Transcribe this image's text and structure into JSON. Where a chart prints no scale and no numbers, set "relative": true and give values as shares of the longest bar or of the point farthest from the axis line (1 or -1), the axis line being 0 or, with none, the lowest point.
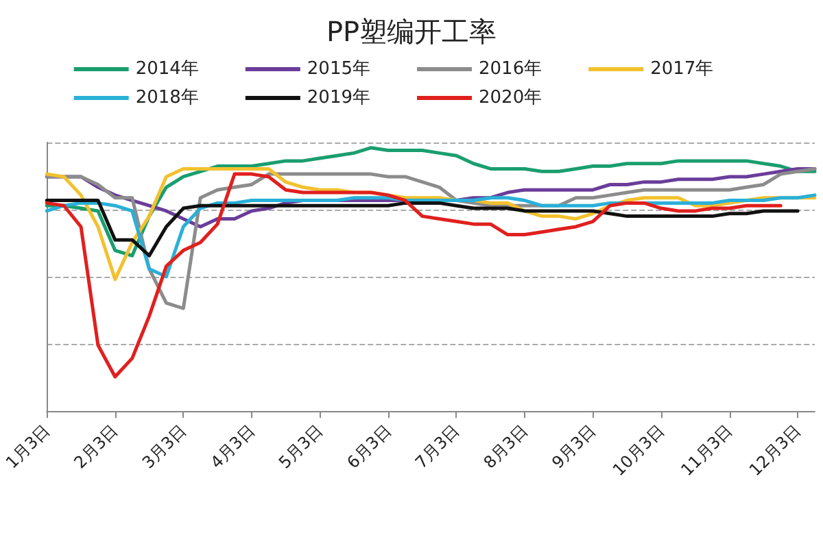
{
  "chart_data": {
    "type": "line",
    "title": "PP塑编开工率",
    "relative": true,
    "grid": "y",
    "legend": "top",
    "marker": "none",
    "line_style": "solid",
    "categories": [
      "1月3日",
      null,
      null,
      null,
      "2月3日",
      null,
      null,
      null,
      "3月3日",
      null,
      null,
      null,
      "4月3日",
      null,
      null,
      null,
      "5月3日",
      null,
      null,
      null,
      "6月3日",
      null,
      null,
      null,
      "7月3日",
      null,
      null,
      null,
      "8月3日",
      null,
      null,
      null,
      "9月3日",
      null,
      null,
      null,
      "10月3日",
      null,
      null,
      null,
      "11月3日",
      null,
      null,
      null,
      "12月3日",
      null
    ],
    "series": [
      {
        "name": "2014年",
        "color": "#1a9e6e",
        "values": [
          0.78,
          0.78,
          0.77,
          0.76,
          0.61,
          0.59,
          0.74,
          0.85,
          0.89,
          0.91,
          0.93,
          0.93,
          0.93,
          0.94,
          0.95,
          0.95,
          0.96,
          0.97,
          0.98,
          1.0,
          0.99,
          0.99,
          0.99,
          0.98,
          0.97,
          0.94,
          0.92,
          0.92,
          0.92,
          0.91,
          0.91,
          0.92,
          0.93,
          0.93,
          0.94,
          0.94,
          0.94,
          0.95,
          0.95,
          0.95,
          0.95,
          0.95,
          0.94,
          0.93,
          0.91,
          0.91
        ]
      },
      {
        "name": "2015年",
        "color": "#6a3d9a",
        "values": [
          0.89,
          0.89,
          0.89,
          0.85,
          0.82,
          0.8,
          0.78,
          0.76,
          0.73,
          0.7,
          0.73,
          0.73,
          0.76,
          0.77,
          0.79,
          0.8,
          null,
          0.8,
          0.8,
          0.8,
          0.8,
          0.8,
          null,
          0.8,
          0.8,
          0.81,
          0.81,
          0.83,
          0.84,
          0.84,
          0.84,
          0.84,
          0.84,
          0.86,
          0.86,
          0.87,
          0.87,
          0.88,
          0.88,
          0.88,
          0.89,
          0.89,
          0.9,
          0.91,
          0.92,
          0.92
        ]
      },
      {
        "name": "2016年",
        "color": "#8c8c8c",
        "values": [
          0.89,
          0.89,
          0.89,
          0.86,
          0.81,
          0.81,
          0.54,
          0.41,
          0.39,
          0.81,
          0.84,
          0.85,
          0.86,
          0.9,
          0.9,
          0.9,
          0.9,
          0.9,
          0.9,
          0.9,
          0.89,
          0.89,
          0.87,
          0.85,
          0.8,
          0.79,
          0.78,
          0.78,
          0.78,
          0.78,
          0.78,
          0.81,
          0.81,
          0.82,
          0.83,
          0.84,
          0.84,
          0.84,
          0.84,
          0.84,
          0.84,
          0.85,
          0.86,
          0.9,
          0.91,
          0.92
        ]
      },
      {
        "name": "2017年",
        "color": "#f2c12e",
        "values": [
          0.9,
          0.89,
          0.82,
          0.7,
          0.5,
          0.64,
          0.74,
          0.89,
          0.92,
          0.92,
          0.92,
          0.92,
          0.92,
          0.92,
          0.87,
          0.85,
          0.84,
          0.84,
          0.83,
          0.83,
          0.82,
          0.81,
          0.81,
          0.81,
          0.8,
          0.8,
          0.79,
          0.79,
          0.76,
          0.74,
          0.74,
          0.73,
          0.75,
          0.78,
          0.8,
          0.81,
          0.81,
          0.81,
          0.78,
          0.78,
          0.79,
          0.8,
          0.81,
          0.81,
          0.81,
          0.81
        ]
      },
      {
        "name": "2018年",
        "color": "#2ab0d8",
        "values": [
          0.76,
          0.78,
          0.79,
          0.79,
          0.78,
          0.76,
          0.54,
          0.51,
          0.7,
          0.77,
          0.79,
          0.79,
          0.8,
          0.8,
          0.8,
          0.8,
          0.8,
          0.8,
          0.81,
          0.81,
          0.81,
          0.8,
          0.8,
          0.8,
          0.8,
          0.8,
          0.81,
          0.81,
          0.8,
          0.78,
          0.78,
          0.78,
          0.78,
          0.79,
          0.79,
          0.79,
          0.79,
          0.79,
          0.79,
          0.79,
          0.8,
          0.8,
          0.8,
          0.81,
          0.81,
          0.82
        ]
      },
      {
        "name": "2019年",
        "color": "#111111",
        "values": [
          0.8,
          0.8,
          0.8,
          0.8,
          0.65,
          0.65,
          0.59,
          0.7,
          0.77,
          0.78,
          0.78,
          0.78,
          0.78,
          0.78,
          0.78,
          0.78,
          0.78,
          0.78,
          0.78,
          0.78,
          0.78,
          0.79,
          0.79,
          0.79,
          0.78,
          0.77,
          0.77,
          0.77,
          0.76,
          0.76,
          0.76,
          0.76,
          0.76,
          0.75,
          0.74,
          0.74,
          0.74,
          0.74,
          0.74,
          0.74,
          0.75,
          0.75,
          0.76,
          0.76,
          0.76,
          null
        ]
      },
      {
        "name": "2020年",
        "color": "#e0201e",
        "values": [
          0.79,
          0.78,
          0.7,
          0.25,
          0.13,
          0.2,
          0.36,
          0.55,
          0.61,
          0.64,
          0.71,
          0.9,
          0.9,
          0.89,
          0.84,
          0.83,
          0.83,
          0.83,
          0.83,
          0.83,
          0.82,
          0.8,
          0.74,
          0.73,
          0.72,
          0.71,
          0.71,
          0.67,
          0.67,
          0.68,
          0.69,
          0.7,
          0.72,
          0.78,
          0.79,
          0.79,
          0.77,
          0.76,
          0.76,
          0.77,
          0.77,
          0.78,
          0.78,
          0.78,
          null,
          null
        ]
      }
    ]
  }
}
